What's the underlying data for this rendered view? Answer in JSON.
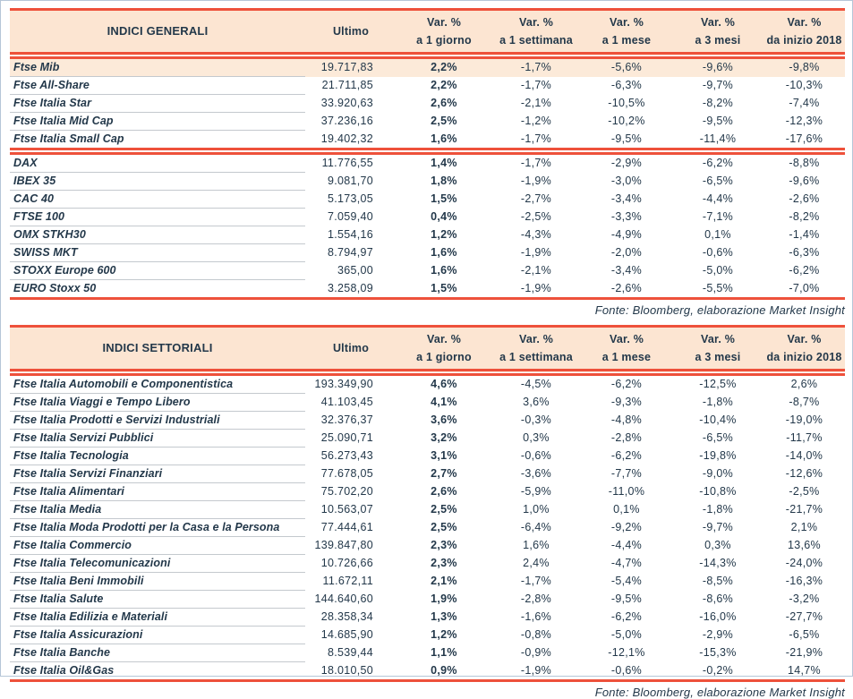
{
  "page": {
    "frame_border": "#b6c6d7",
    "background": "#ffffff"
  },
  "colors": {
    "accent_red": "#ee513b",
    "header_bg": "#fce5d2",
    "highlight_row_bg": "#fcead9",
    "text_dark": "#23384a",
    "row_divider": "#c4c9ce"
  },
  "columns": {
    "ultimo": "Ultimo",
    "var_label": "Var. %",
    "periods": [
      "a 1 giorno",
      "a 1 settimana",
      "a 1 mese",
      "a 3 mesi",
      "da inizio 2018"
    ]
  },
  "tables": [
    {
      "title": "INDICI GENERALI",
      "source": "Fonte: Bloomberg, elaborazione Market Insight",
      "sections": [
        {
          "rows": [
            {
              "name": "Ftse Mib",
              "ultimo": "19.717,83",
              "vars": [
                "2,2%",
                "-1,7%",
                "-5,6%",
                "-9,6%",
                "-9,8%"
              ],
              "highlight": true
            },
            {
              "name": "Ftse All-Share",
              "ultimo": "21.711,85",
              "vars": [
                "2,2%",
                "-1,7%",
                "-6,3%",
                "-9,7%",
                "-10,3%"
              ]
            },
            {
              "name": "Ftse Italia Star",
              "ultimo": "33.920,63",
              "vars": [
                "2,6%",
                "-2,1%",
                "-10,5%",
                "-8,2%",
                "-7,4%"
              ]
            },
            {
              "name": "Ftse Italia Mid Cap",
              "ultimo": "37.236,16",
              "vars": [
                "2,5%",
                "-1,2%",
                "-10,2%",
                "-9,5%",
                "-12,3%"
              ]
            },
            {
              "name": "Ftse Italia Small Cap",
              "ultimo": "19.402,32",
              "vars": [
                "1,6%",
                "-1,7%",
                "-9,5%",
                "-11,4%",
                "-17,6%"
              ]
            }
          ]
        },
        {
          "rows": [
            {
              "name": "DAX",
              "ultimo": "11.776,55",
              "vars": [
                "1,4%",
                "-1,7%",
                "-2,9%",
                "-6,2%",
                "-8,8%"
              ]
            },
            {
              "name": "IBEX 35",
              "ultimo": "9.081,70",
              "vars": [
                "1,8%",
                "-1,9%",
                "-3,0%",
                "-6,5%",
                "-9,6%"
              ]
            },
            {
              "name": "CAC 40",
              "ultimo": "5.173,05",
              "vars": [
                "1,5%",
                "-2,7%",
                "-3,4%",
                "-4,4%",
                "-2,6%"
              ]
            },
            {
              "name": "FTSE 100",
              "ultimo": "7.059,40",
              "vars": [
                "0,4%",
                "-2,5%",
                "-3,3%",
                "-7,1%",
                "-8,2%"
              ]
            },
            {
              "name": "OMX STKH30",
              "ultimo": "1.554,16",
              "vars": [
                "1,2%",
                "-4,3%",
                "-4,9%",
                "0,1%",
                "-1,4%"
              ]
            },
            {
              "name": "SWISS MKT",
              "ultimo": "8.794,97",
              "vars": [
                "1,6%",
                "-1,9%",
                "-2,0%",
                "-0,6%",
                "-6,3%"
              ]
            },
            {
              "name": "STOXX Europe 600",
              "ultimo": "365,00",
              "vars": [
                "1,6%",
                "-2,1%",
                "-3,4%",
                "-5,0%",
                "-6,2%"
              ]
            },
            {
              "name": "EURO Stoxx 50",
              "ultimo": "3.258,09",
              "vars": [
                "1,5%",
                "-1,9%",
                "-2,6%",
                "-5,5%",
                "-7,0%"
              ]
            }
          ]
        }
      ]
    },
    {
      "title": "INDICI SETTORIALI",
      "source": "Fonte: Bloomberg, elaborazione Market Insight",
      "sections": [
        {
          "rows": [
            {
              "name": "Ftse Italia Automobili e Componentistica",
              "ultimo": "193.349,90",
              "vars": [
                "4,6%",
                "-4,5%",
                "-6,2%",
                "-12,5%",
                "2,6%"
              ]
            },
            {
              "name": "Ftse Italia Viaggi e Tempo Libero",
              "ultimo": "41.103,45",
              "vars": [
                "4,1%",
                "3,6%",
                "-9,3%",
                "-1,8%",
                "-8,7%"
              ]
            },
            {
              "name": "Ftse Italia Prodotti e Servizi Industriali",
              "ultimo": "32.376,37",
              "vars": [
                "3,6%",
                "-0,3%",
                "-4,8%",
                "-10,4%",
                "-19,0%"
              ]
            },
            {
              "name": "Ftse Italia Servizi Pubblici",
              "ultimo": "25.090,71",
              "vars": [
                "3,2%",
                "0,3%",
                "-2,8%",
                "-6,5%",
                "-11,7%"
              ]
            },
            {
              "name": "Ftse Italia Tecnologia",
              "ultimo": "56.273,43",
              "vars": [
                "3,1%",
                "-0,6%",
                "-6,2%",
                "-19,8%",
                "-14,0%"
              ]
            },
            {
              "name": "Ftse Italia Servizi Finanziari",
              "ultimo": "77.678,05",
              "vars": [
                "2,7%",
                "-3,6%",
                "-7,7%",
                "-9,0%",
                "-12,6%"
              ]
            },
            {
              "name": "Ftse Italia Alimentari",
              "ultimo": "75.702,20",
              "vars": [
                "2,6%",
                "-5,9%",
                "-11,0%",
                "-10,8%",
                "-2,5%"
              ]
            },
            {
              "name": "Ftse Italia Media",
              "ultimo": "10.563,07",
              "vars": [
                "2,5%",
                "1,0%",
                "0,1%",
                "-1,8%",
                "-21,7%"
              ]
            },
            {
              "name": "Ftse Italia Moda Prodotti per la Casa e la Persona",
              "ultimo": "77.444,61",
              "vars": [
                "2,5%",
                "-6,4%",
                "-9,2%",
                "-9,7%",
                "2,1%"
              ]
            },
            {
              "name": "Ftse Italia Commercio",
              "ultimo": "139.847,80",
              "vars": [
                "2,3%",
                "1,6%",
                "-4,4%",
                "0,3%",
                "13,6%"
              ]
            },
            {
              "name": "Ftse Italia Telecomunicazioni",
              "ultimo": "10.726,66",
              "vars": [
                "2,3%",
                "2,4%",
                "-4,7%",
                "-14,3%",
                "-24,0%"
              ]
            },
            {
              "name": "Ftse Italia Beni Immobili",
              "ultimo": "11.672,11",
              "vars": [
                "2,1%",
                "-1,7%",
                "-5,4%",
                "-8,5%",
                "-16,3%"
              ]
            },
            {
              "name": "Ftse Italia Salute",
              "ultimo": "144.640,60",
              "vars": [
                "1,9%",
                "-2,8%",
                "-9,5%",
                "-8,6%",
                "-3,2%"
              ]
            },
            {
              "name": "Ftse Italia Edilizia e Materiali",
              "ultimo": "28.358,34",
              "vars": [
                "1,3%",
                "-1,6%",
                "-6,2%",
                "-16,0%",
                "-27,7%"
              ]
            },
            {
              "name": "Ftse Italia Assicurazioni",
              "ultimo": "14.685,90",
              "vars": [
                "1,2%",
                "-0,8%",
                "-5,0%",
                "-2,9%",
                "-6,5%"
              ]
            },
            {
              "name": "Ftse Italia Banche",
              "ultimo": "8.539,44",
              "vars": [
                "1,1%",
                "-0,9%",
                "-12,1%",
                "-15,3%",
                "-21,9%"
              ]
            },
            {
              "name": "Ftse Italia Oil&Gas",
              "ultimo": "18.010,50",
              "vars": [
                "0,9%",
                "-1,9%",
                "-0,6%",
                "-0,2%",
                "14,7%"
              ]
            }
          ]
        }
      ]
    }
  ]
}
